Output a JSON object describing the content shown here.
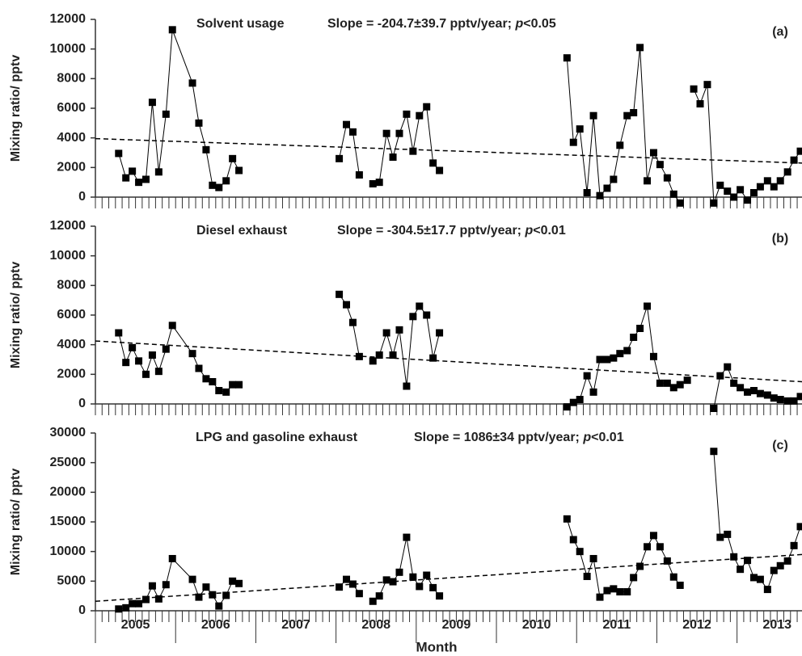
{
  "xlabel": "Month",
  "chart_data": [
    {
      "type": "line",
      "title": "Solvent usage",
      "annotation": {
        "prefix": "Slope = -204.7±39.7 pptv/year; ",
        "italic": "p",
        "suffix": "<0.05"
      },
      "panel_label": "(a)",
      "ylabel": "Mixing ratio/ pptv",
      "xlim": [
        2005,
        2013.81
      ],
      "ylim": [
        0,
        12000
      ],
      "yticks": [
        0,
        2000,
        4000,
        6000,
        8000,
        10000,
        12000
      ],
      "x": [
        2005.29,
        2005.38,
        2005.46,
        2005.54,
        2005.63,
        2005.71,
        2005.79,
        2005.88,
        2005.96,
        2006.21,
        2006.29,
        2006.38,
        2006.46,
        2006.54,
        2006.63,
        2006.71,
        2006.79,
        2007.5,
        2008.04,
        2008.13,
        2008.21,
        2008.29,
        2008.38,
        2008.46,
        2008.54,
        2008.63,
        2008.71,
        2008.79,
        2008.88,
        2008.96,
        2009.04,
        2009.13,
        2009.21,
        2009.29,
        2010.0,
        2010.88,
        2010.96,
        2011.04,
        2011.13,
        2011.21,
        2011.29,
        2011.38,
        2011.46,
        2011.54,
        2011.63,
        2011.71,
        2011.79,
        2011.88,
        2011.96,
        2012.04,
        2012.13,
        2012.21,
        2012.29,
        2012.38,
        2012.46,
        2012.54,
        2012.63,
        2012.71,
        2012.79,
        2012.88,
        2012.96,
        2013.04,
        2013.13,
        2013.21,
        2013.29,
        2013.38,
        2013.46,
        2013.54,
        2013.63,
        2013.71,
        2013.79
      ],
      "values": [
        2950,
        1300,
        1750,
        1000,
        1200,
        6400,
        1700,
        5600,
        11300,
        7700,
        5000,
        3200,
        800,
        650,
        1100,
        2600,
        1800,
        null,
        2600,
        4900,
        4400,
        1500,
        null,
        900,
        1000,
        4300,
        2700,
        4300,
        5600,
        3100,
        5500,
        6100,
        2300,
        1800,
        null,
        9400,
        3700,
        4600,
        300,
        5500,
        100,
        600,
        1200,
        3500,
        5500,
        5700,
        10100,
        1100,
        3000,
        2200,
        1300,
        200,
        -400,
        null,
        7300,
        6300,
        7600,
        -400,
        800,
        400,
        0,
        500,
        -200,
        300,
        700,
        1100,
        700,
        1100,
        1700,
        2500,
        3100
      ],
      "color": "#000000",
      "trend": {
        "x": [
          2005,
          2013.81
        ],
        "values": [
          3950,
          2300
        ]
      }
    },
    {
      "type": "line",
      "title": "Diesel exhaust",
      "annotation": {
        "prefix": "Slope = -304.5±17.7 pptv/year; ",
        "italic": "p",
        "suffix": "<0.01"
      },
      "panel_label": "(b)",
      "ylabel": "Mixing ratio/ pptv",
      "xlim": [
        2005,
        2013.81
      ],
      "ylim": [
        0,
        12000
      ],
      "yticks": [
        0,
        2000,
        4000,
        6000,
        8000,
        10000,
        12000
      ],
      "x": [
        2005.29,
        2005.38,
        2005.46,
        2005.54,
        2005.63,
        2005.71,
        2005.79,
        2005.88,
        2005.96,
        2006.21,
        2006.29,
        2006.38,
        2006.46,
        2006.54,
        2006.63,
        2006.71,
        2006.79,
        2007.5,
        2008.04,
        2008.13,
        2008.21,
        2008.29,
        2008.38,
        2008.46,
        2008.54,
        2008.63,
        2008.71,
        2008.79,
        2008.88,
        2008.96,
        2009.04,
        2009.13,
        2009.21,
        2009.29,
        2010.0,
        2010.88,
        2010.96,
        2011.04,
        2011.13,
        2011.21,
        2011.29,
        2011.38,
        2011.46,
        2011.54,
        2011.63,
        2011.71,
        2011.79,
        2011.88,
        2011.96,
        2012.04,
        2012.13,
        2012.21,
        2012.29,
        2012.38,
        2012.46,
        2012.54,
        2012.63,
        2012.71,
        2012.79,
        2012.88,
        2012.96,
        2013.04,
        2013.13,
        2013.21,
        2013.29,
        2013.38,
        2013.46,
        2013.54,
        2013.63,
        2013.71,
        2013.79
      ],
      "values": [
        4800,
        2800,
        3800,
        2900,
        2000,
        3300,
        2200,
        3700,
        5300,
        3400,
        2400,
        1700,
        1500,
        900,
        800,
        1300,
        1300,
        null,
        7400,
        6700,
        5500,
        3200,
        null,
        2900,
        3300,
        4800,
        3300,
        5000,
        1200,
        5900,
        6600,
        6000,
        3100,
        4800,
        null,
        -200,
        100,
        300,
        1900,
        800,
        3000,
        3000,
        3100,
        3400,
        3600,
        4500,
        5100,
        6600,
        3200,
        1400,
        1400,
        1100,
        1300,
        1600,
        null,
        null,
        null,
        -300,
        1900,
        2500,
        1400,
        1100,
        800,
        900,
        700,
        600,
        400,
        300,
        200,
        200,
        500
      ],
      "color": "#000000",
      "trend": {
        "x": [
          2005,
          2013.81
        ],
        "values": [
          4250,
          1500
        ]
      }
    },
    {
      "type": "line",
      "title": "LPG and gasoline exhaust",
      "annotation": {
        "prefix": "Slope = 1086±34 pptv/year; ",
        "italic": "p",
        "suffix": "<0.01"
      },
      "panel_label": "(c)",
      "ylabel": "Mixing ratio/ pptv",
      "xlim": [
        2005,
        2013.81
      ],
      "ylim": [
        0,
        30000
      ],
      "yticks": [
        0,
        5000,
        10000,
        15000,
        20000,
        25000,
        30000
      ],
      "xticks": [
        {
          "value": 2005.5,
          "label": "2005"
        },
        {
          "value": 2006.5,
          "label": "2006"
        },
        {
          "value": 2007.5,
          "label": "2007"
        },
        {
          "value": 2008.5,
          "label": "2008"
        },
        {
          "value": 2009.5,
          "label": "2009"
        },
        {
          "value": 2010.5,
          "label": "2010"
        },
        {
          "value": 2011.5,
          "label": "2011"
        },
        {
          "value": 2012.5,
          "label": "2012"
        },
        {
          "value": 2013.5,
          "label": "2013"
        }
      ],
      "x": [
        2005.29,
        2005.38,
        2005.46,
        2005.54,
        2005.63,
        2005.71,
        2005.79,
        2005.88,
        2005.96,
        2006.21,
        2006.29,
        2006.38,
        2006.46,
        2006.54,
        2006.63,
        2006.71,
        2006.79,
        2007.5,
        2008.04,
        2008.13,
        2008.21,
        2008.29,
        2008.38,
        2008.46,
        2008.54,
        2008.63,
        2008.71,
        2008.79,
        2008.88,
        2008.96,
        2009.04,
        2009.13,
        2009.21,
        2009.29,
        2010.0,
        2010.88,
        2010.96,
        2011.04,
        2011.13,
        2011.21,
        2011.29,
        2011.38,
        2011.46,
        2011.54,
        2011.63,
        2011.71,
        2011.79,
        2011.88,
        2011.96,
        2012.04,
        2012.13,
        2012.21,
        2012.29,
        2012.38,
        2012.46,
        2012.54,
        2012.63,
        2012.71,
        2012.79,
        2012.88,
        2012.96,
        2013.04,
        2013.13,
        2013.21,
        2013.29,
        2013.38,
        2013.46,
        2013.54,
        2013.63,
        2013.71,
        2013.79
      ],
      "values": [
        300,
        500,
        1200,
        1200,
        1900,
        4200,
        2000,
        4400,
        8800,
        5300,
        2300,
        4000,
        2700,
        800,
        2600,
        5000,
        4600,
        null,
        4000,
        5300,
        4500,
        2900,
        null,
        1600,
        2500,
        5200,
        4900,
        6500,
        12400,
        5700,
        4100,
        6000,
        3900,
        2500,
        null,
        15500,
        12000,
        10000,
        5800,
        8800,
        2300,
        3400,
        3700,
        3200,
        3200,
        5600,
        7500,
        10800,
        12700,
        10800,
        8400,
        5700,
        4300,
        null,
        null,
        null,
        null,
        26900,
        12400,
        12900,
        9100,
        7000,
        8500,
        5600,
        5300,
        3600,
        6800,
        7600,
        8400,
        11000,
        14200
      ],
      "color": "#000000",
      "trend": {
        "x": [
          2005,
          2013.81
        ],
        "values": [
          1600,
          9500
        ]
      }
    }
  ]
}
